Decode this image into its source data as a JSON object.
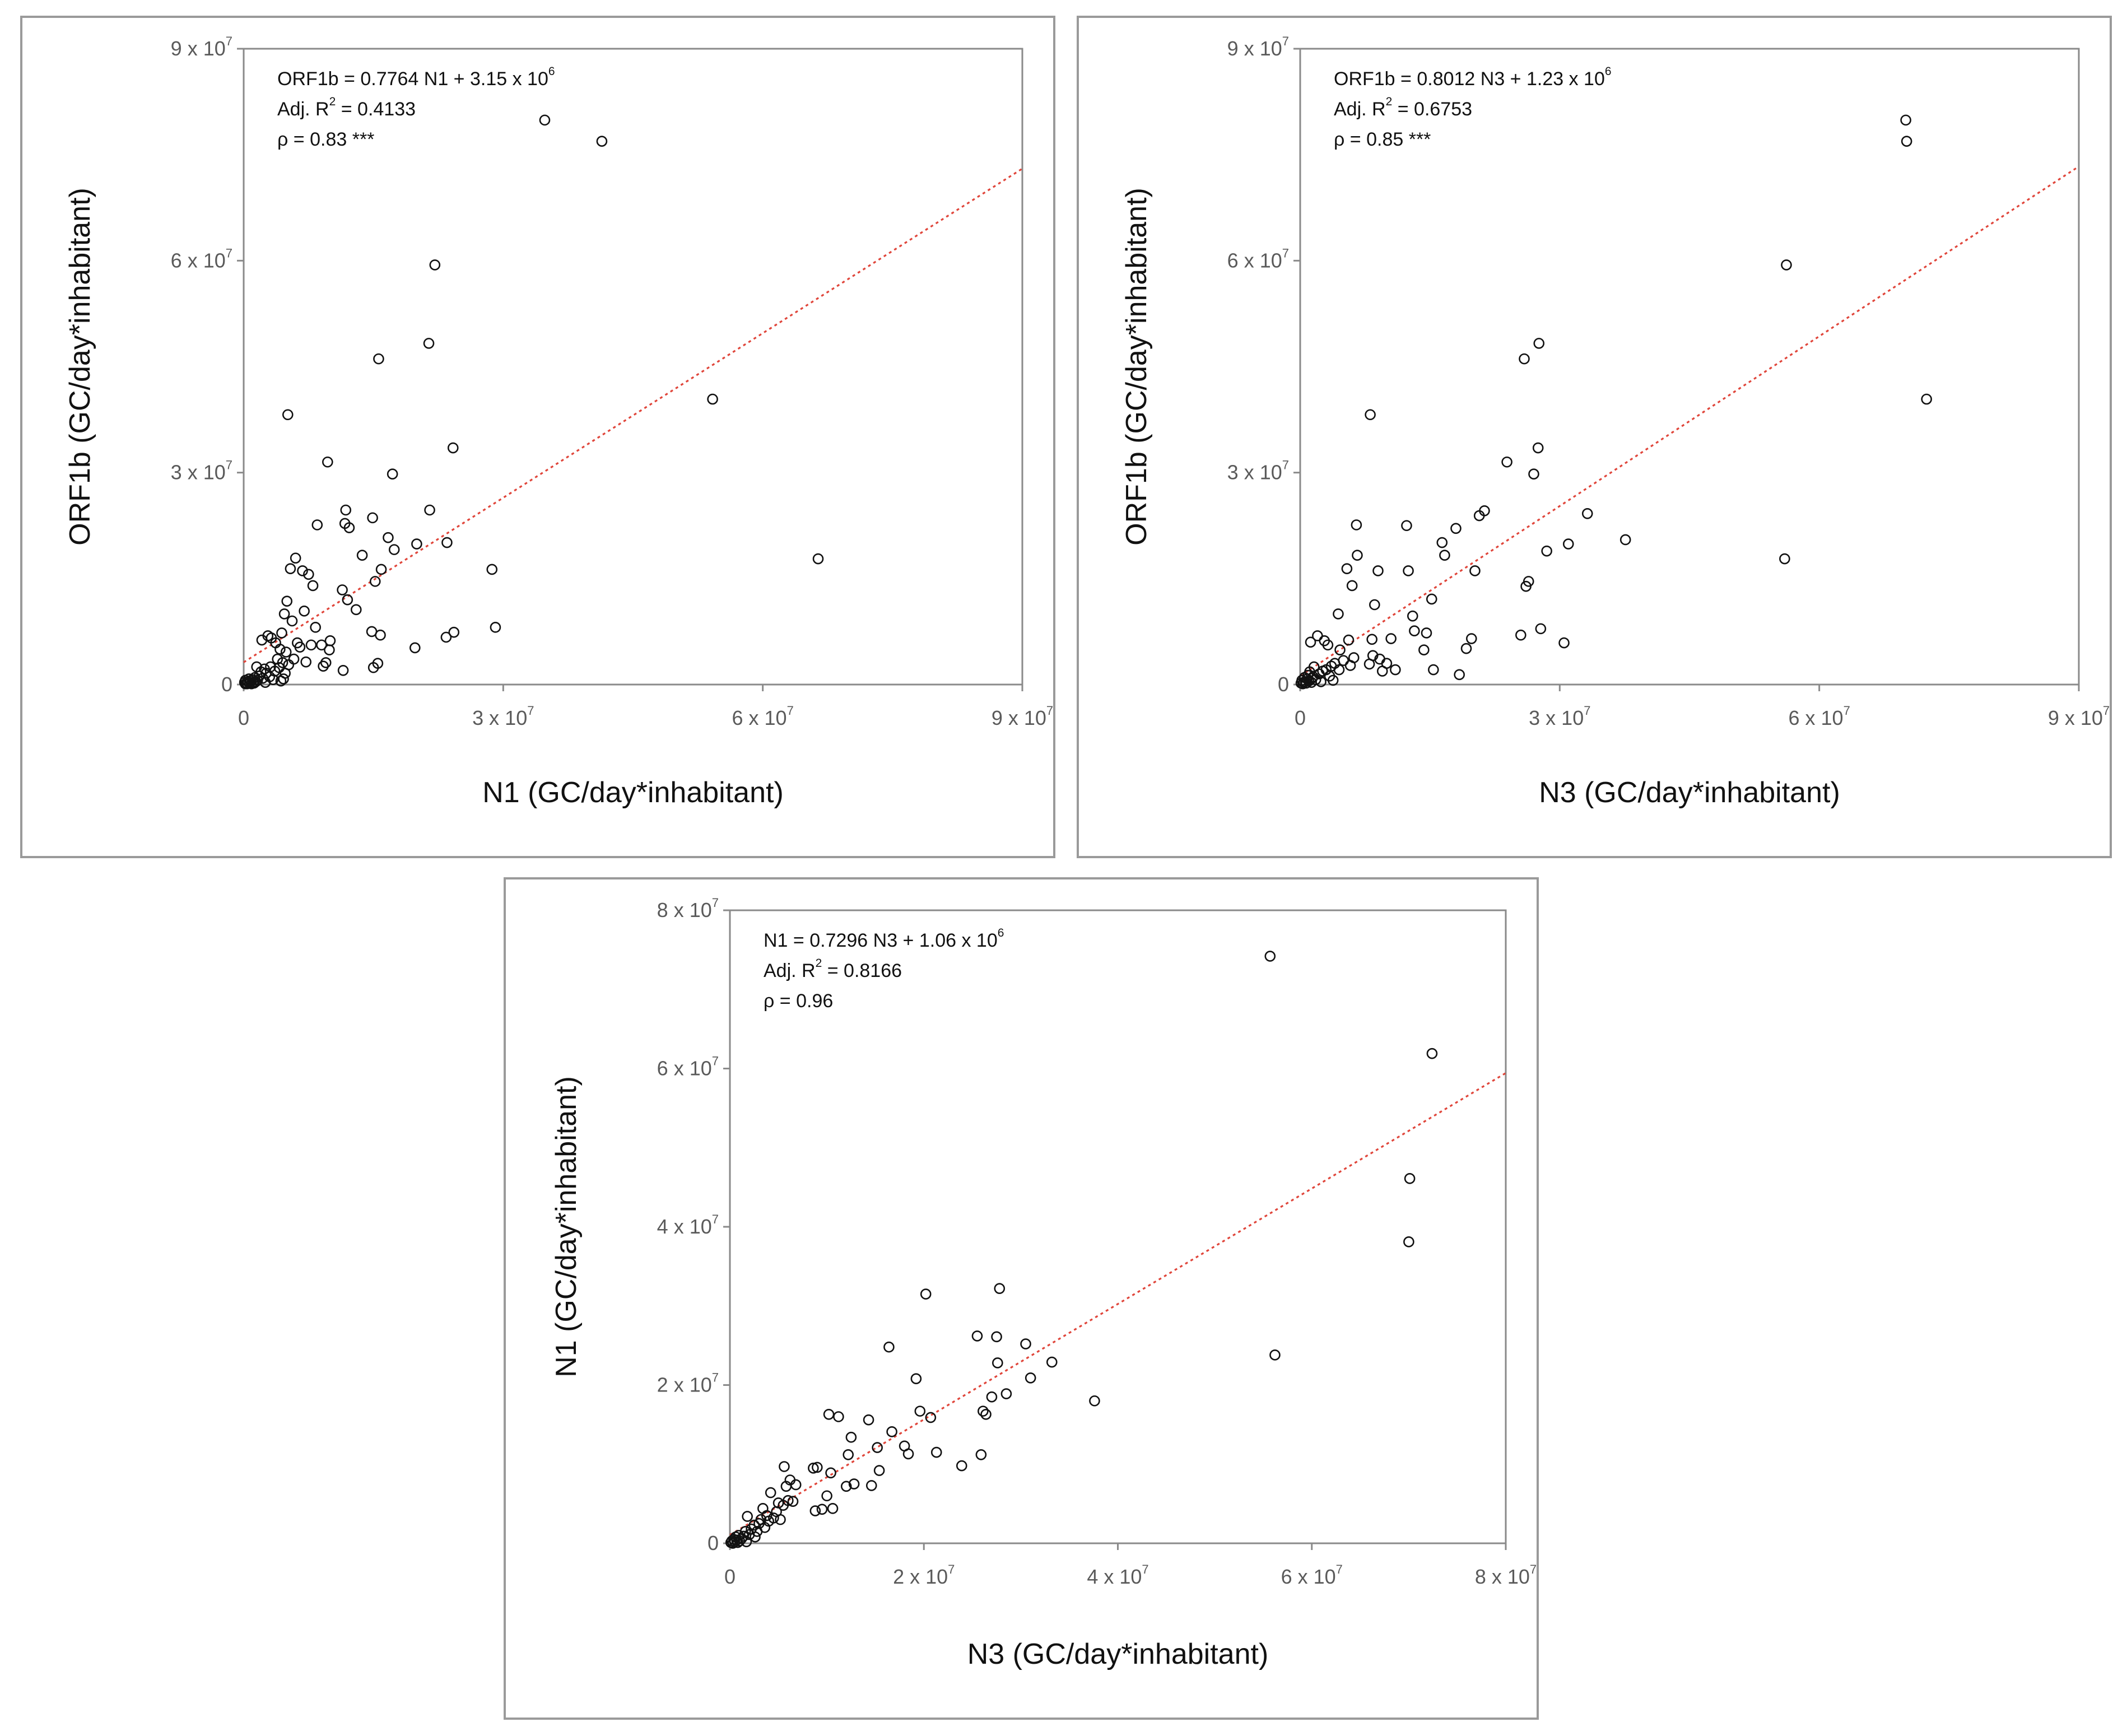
{
  "chart_data": [
    {
      "id": "chart1",
      "type": "scatter",
      "xlabel": "N1  (GC/day*inhabitant)",
      "ylabel": "ORF1b  (GC/day*inhabitant)",
      "xlim": [
        0,
        90000000
      ],
      "ylim": [
        0,
        90000000
      ],
      "x_ticks": [
        {
          "value": 0,
          "base": "0",
          "exp": ""
        },
        {
          "value": 30000000,
          "base": "3 x 10",
          "exp": "7"
        },
        {
          "value": 60000000,
          "base": "6 x 10",
          "exp": "7"
        },
        {
          "value": 90000000,
          "base": "9 x 10",
          "exp": "7"
        }
      ],
      "y_ticks": [
        {
          "value": 0,
          "base": "0",
          "exp": ""
        },
        {
          "value": 30000000,
          "base": "3 x 10",
          "exp": "7"
        },
        {
          "value": 60000000,
          "base": "6 x 10",
          "exp": "7"
        },
        {
          "value": 90000000,
          "base": "9 x 10",
          "exp": "7"
        }
      ],
      "annotations": [
        {
          "text": "ORF1b = 0.7764 N1 + 3.15 x 10",
          "sup": "6"
        },
        {
          "text": "Adj. R",
          "sup": "2",
          "tail": " = 0.4133"
        },
        {
          "text": "ρ = 0.83 ***",
          "sup": ""
        }
      ],
      "trendline": {
        "slope": 0.7764,
        "intercept": 3150000
      },
      "points": [
        [
          0.1,
          0.3
        ],
        [
          0.2,
          0.1
        ],
        [
          0.2,
          0.6
        ],
        [
          0.3,
          0.2
        ],
        [
          0.4,
          0.1
        ],
        [
          0.5,
          0.4
        ],
        [
          0.6,
          0.8
        ],
        [
          0.7,
          0.2
        ],
        [
          0.8,
          0.5
        ],
        [
          0.9,
          0.1
        ],
        [
          1.0,
          0.7
        ],
        [
          1.1,
          0.3
        ],
        [
          1.2,
          0.2
        ],
        [
          1.3,
          1.0
        ],
        [
          1.4,
          0.4
        ],
        [
          1.5,
          2.5
        ],
        [
          1.6,
          0.6
        ],
        [
          1.8,
          1.2
        ],
        [
          2.0,
          1.8
        ],
        [
          2.1,
          6.3
        ],
        [
          2.2,
          0.9
        ],
        [
          2.4,
          2.2
        ],
        [
          2.5,
          0.3
        ],
        [
          2.6,
          1.6
        ],
        [
          2.8,
          6.9
        ],
        [
          3.0,
          1.1
        ],
        [
          3.1,
          2.5
        ],
        [
          3.2,
          6.6
        ],
        [
          3.4,
          0.7
        ],
        [
          3.6,
          1.9
        ],
        [
          3.7,
          5.9
        ],
        [
          3.9,
          3.6
        ],
        [
          4.1,
          2.4
        ],
        [
          4.2,
          5.0
        ],
        [
          4.3,
          0.5
        ],
        [
          4.4,
          7.3
        ],
        [
          4.5,
          3.1
        ],
        [
          4.6,
          0.8
        ],
        [
          4.7,
          10.0
        ],
        [
          4.8,
          1.6
        ],
        [
          4.9,
          4.6
        ],
        [
          5.0,
          11.8
        ],
        [
          5.1,
          38.2
        ],
        [
          5.2,
          2.8
        ],
        [
          5.4,
          16.4
        ],
        [
          5.6,
          9.0
        ],
        [
          5.8,
          3.6
        ],
        [
          6.0,
          17.9
        ],
        [
          6.2,
          5.9
        ],
        [
          6.5,
          5.3
        ],
        [
          6.8,
          16.1
        ],
        [
          7.0,
          10.4
        ],
        [
          7.2,
          3.2
        ],
        [
          7.5,
          15.6
        ],
        [
          7.8,
          5.6
        ],
        [
          8.0,
          14.0
        ],
        [
          8.3,
          8.1
        ],
        [
          8.5,
          22.6
        ],
        [
          9.0,
          5.6
        ],
        [
          9.2,
          2.6
        ],
        [
          9.5,
          3.1
        ],
        [
          9.7,
          31.5
        ],
        [
          9.9,
          4.9
        ],
        [
          10.0,
          6.2
        ],
        [
          11.4,
          13.4
        ],
        [
          11.5,
          2.0
        ],
        [
          11.7,
          22.8
        ],
        [
          11.8,
          24.7
        ],
        [
          12.0,
          12.0
        ],
        [
          12.2,
          22.2
        ],
        [
          13.0,
          10.6
        ],
        [
          13.7,
          18.3
        ],
        [
          14.8,
          7.5
        ],
        [
          14.9,
          23.6
        ],
        [
          15.0,
          2.4
        ],
        [
          15.2,
          14.6
        ],
        [
          15.5,
          3.0
        ],
        [
          15.6,
          46.1
        ],
        [
          15.8,
          7.0
        ],
        [
          15.9,
          16.3
        ],
        [
          16.7,
          20.8
        ],
        [
          17.2,
          29.8
        ],
        [
          17.4,
          19.1
        ],
        [
          19.8,
          5.2
        ],
        [
          20.0,
          19.9
        ],
        [
          21.4,
          48.3
        ],
        [
          21.5,
          24.7
        ],
        [
          22.1,
          59.4
        ],
        [
          23.4,
          6.7
        ],
        [
          23.5,
          20.1
        ],
        [
          24.2,
          33.5
        ],
        [
          24.3,
          7.4
        ],
        [
          28.7,
          16.3
        ],
        [
          29.1,
          8.1
        ],
        [
          34.8,
          79.9
        ],
        [
          41.4,
          76.9
        ],
        [
          54.2,
          40.4
        ],
        [
          66.4,
          17.8
        ]
      ]
    },
    {
      "id": "chart2",
      "type": "scatter",
      "xlabel": "N3  (GC/day*inhabitant)",
      "ylabel": "ORF1b  (GC/day*inhabitant)",
      "xlim": [
        0,
        90000000
      ],
      "ylim": [
        0,
        90000000
      ],
      "x_ticks": [
        {
          "value": 0,
          "base": "0",
          "exp": ""
        },
        {
          "value": 30000000,
          "base": "3 x 10",
          "exp": "7"
        },
        {
          "value": 60000000,
          "base": "6 x 10",
          "exp": "7"
        },
        {
          "value": 90000000,
          "base": "9 x 10",
          "exp": "7"
        }
      ],
      "y_ticks": [
        {
          "value": 0,
          "base": "0",
          "exp": ""
        },
        {
          "value": 30000000,
          "base": "3 x 10",
          "exp": "7"
        },
        {
          "value": 60000000,
          "base": "6 x 10",
          "exp": "7"
        },
        {
          "value": 90000000,
          "base": "9 x 10",
          "exp": "7"
        }
      ],
      "annotations": [
        {
          "text": "ORF1b = 0.8012 N3 + 1.23 x 10",
          "sup": "6"
        },
        {
          "text": "Adj. R",
          "sup": "2",
          "tail": " = 0.6753"
        },
        {
          "text": "ρ = 0.85 ***",
          "sup": ""
        }
      ],
      "trendline": {
        "slope": 0.8012,
        "intercept": 1230000
      },
      "points": [
        [
          0.1,
          0.2
        ],
        [
          0.2,
          0.6
        ],
        [
          0.3,
          0.1
        ],
        [
          0.4,
          0.3
        ],
        [
          0.5,
          1.0
        ],
        [
          0.6,
          0.4
        ],
        [
          0.7,
          0.2
        ],
        [
          0.8,
          0.8
        ],
        [
          0.9,
          1.3
        ],
        [
          1.0,
          0.5
        ],
        [
          1.1,
          1.8
        ],
        [
          1.2,
          6.0
        ],
        [
          1.3,
          0.3
        ],
        [
          1.4,
          0.9
        ],
        [
          1.5,
          1.1
        ],
        [
          1.6,
          2.5
        ],
        [
          1.8,
          0.7
        ],
        [
          2.0,
          6.9
        ],
        [
          2.2,
          1.5
        ],
        [
          2.4,
          0.4
        ],
        [
          2.6,
          1.9
        ],
        [
          2.8,
          6.2
        ],
        [
          3.0,
          2.1
        ],
        [
          3.2,
          5.6
        ],
        [
          3.4,
          1.2
        ],
        [
          3.6,
          2.6
        ],
        [
          3.8,
          0.6
        ],
        [
          4.0,
          3.0
        ],
        [
          4.4,
          10.0
        ],
        [
          4.5,
          2.1
        ],
        [
          4.6,
          4.9
        ],
        [
          5.0,
          3.4
        ],
        [
          5.4,
          16.4
        ],
        [
          5.6,
          6.3
        ],
        [
          5.8,
          2.7
        ],
        [
          6.0,
          14.0
        ],
        [
          6.2,
          3.8
        ],
        [
          6.5,
          22.6
        ],
        [
          6.6,
          18.3
        ],
        [
          8.0,
          2.9
        ],
        [
          8.1,
          38.2
        ],
        [
          8.3,
          6.4
        ],
        [
          8.4,
          4.1
        ],
        [
          8.6,
          11.3
        ],
        [
          9.0,
          16.1
        ],
        [
          9.2,
          3.6
        ],
        [
          9.5,
          1.9
        ],
        [
          10.0,
          3.0
        ],
        [
          10.5,
          6.5
        ],
        [
          11.0,
          2.1
        ],
        [
          12.3,
          22.5
        ],
        [
          12.5,
          16.1
        ],
        [
          13.0,
          9.7
        ],
        [
          13.2,
          7.6
        ],
        [
          14.3,
          4.9
        ],
        [
          14.6,
          7.3
        ],
        [
          15.2,
          12.1
        ],
        [
          15.4,
          2.1
        ],
        [
          16.4,
          20.1
        ],
        [
          16.7,
          18.3
        ],
        [
          18.0,
          22.1
        ],
        [
          18.4,
          1.4
        ],
        [
          19.2,
          5.1
        ],
        [
          19.8,
          6.5
        ],
        [
          20.2,
          16.1
        ],
        [
          20.7,
          23.9
        ],
        [
          21.3,
          24.6
        ],
        [
          23.9,
          31.5
        ],
        [
          25.5,
          7.0
        ],
        [
          25.9,
          46.1
        ],
        [
          26.1,
          13.9
        ],
        [
          26.4,
          14.6
        ],
        [
          27.0,
          29.8
        ],
        [
          27.5,
          33.5
        ],
        [
          27.6,
          48.3
        ],
        [
          27.8,
          7.9
        ],
        [
          28.5,
          18.9
        ],
        [
          30.5,
          5.9
        ],
        [
          31.0,
          19.9
        ],
        [
          33.2,
          24.2
        ],
        [
          37.6,
          20.5
        ],
        [
          56.0,
          17.8
        ],
        [
          56.2,
          59.4
        ],
        [
          70.0,
          79.9
        ],
        [
          70.1,
          76.9
        ],
        [
          72.4,
          40.4
        ]
      ]
    },
    {
      "id": "chart3",
      "type": "scatter",
      "xlabel": "N3  (GC/day*inhabitant)",
      "ylabel": "N1  (GC/day*inhabitant)",
      "xlim": [
        0,
        80000000
      ],
      "ylim": [
        0,
        80000000
      ],
      "x_ticks": [
        {
          "value": 0,
          "base": "0",
          "exp": ""
        },
        {
          "value": 20000000,
          "base": "2 x 10",
          "exp": "7"
        },
        {
          "value": 40000000,
          "base": "4 x 10",
          "exp": "7"
        },
        {
          "value": 60000000,
          "base": "6 x 10",
          "exp": "7"
        },
        {
          "value": 80000000,
          "base": "8 x 10",
          "exp": "7"
        }
      ],
      "y_ticks": [
        {
          "value": 0,
          "base": "0",
          "exp": ""
        },
        {
          "value": 20000000,
          "base": "2 x 10",
          "exp": "7"
        },
        {
          "value": 40000000,
          "base": "4 x 10",
          "exp": "7"
        },
        {
          "value": 60000000,
          "base": "6 x 10",
          "exp": "7"
        },
        {
          "value": 80000000,
          "base": "8 x 10",
          "exp": "7"
        }
      ],
      "annotations": [
        {
          "text": "N1 = 0.7296 N3 + 1.06 x 10",
          "sup": "6"
        },
        {
          "text": "Adj. R",
          "sup": "2",
          "tail": " = 0.8166"
        },
        {
          "text": "ρ = 0.96",
          "sup": ""
        }
      ],
      "trendline": {
        "slope": 0.7296,
        "intercept": 1060000
      },
      "points": [
        [
          0.1,
          0.1
        ],
        [
          0.2,
          0.3
        ],
        [
          0.3,
          0.0
        ],
        [
          0.4,
          0.5
        ],
        [
          0.5,
          0.2
        ],
        [
          0.6,
          0.8
        ],
        [
          0.7,
          0.4
        ],
        [
          0.8,
          0.1
        ],
        [
          0.9,
          1.0
        ],
        [
          1.0,
          0.3
        ],
        [
          1.2,
          0.6
        ],
        [
          1.4,
          0.9
        ],
        [
          1.6,
          1.5
        ],
        [
          1.7,
          0.2
        ],
        [
          1.8,
          3.4
        ],
        [
          2.0,
          1.1
        ],
        [
          2.2,
          1.8
        ],
        [
          2.5,
          2.3
        ],
        [
          2.6,
          0.8
        ],
        [
          2.8,
          1.5
        ],
        [
          3.0,
          2.5
        ],
        [
          3.2,
          3.0
        ],
        [
          3.4,
          4.4
        ],
        [
          3.6,
          2.0
        ],
        [
          3.8,
          3.5
        ],
        [
          4.0,
          2.8
        ],
        [
          4.2,
          6.4
        ],
        [
          4.5,
          3.2
        ],
        [
          4.8,
          4.0
        ],
        [
          5.0,
          5.1
        ],
        [
          5.2,
          3.0
        ],
        [
          5.5,
          4.8
        ],
        [
          5.6,
          9.7
        ],
        [
          5.8,
          7.2
        ],
        [
          6.0,
          5.4
        ],
        [
          6.2,
          8.0
        ],
        [
          6.5,
          5.3
        ],
        [
          6.8,
          7.4
        ],
        [
          8.6,
          9.5
        ],
        [
          8.8,
          4.1
        ],
        [
          9.0,
          9.6
        ],
        [
          9.5,
          4.3
        ],
        [
          10.0,
          6.0
        ],
        [
          10.2,
          16.3
        ],
        [
          10.4,
          8.9
        ],
        [
          10.6,
          4.4
        ],
        [
          11.2,
          16.0
        ],
        [
          12.0,
          7.2
        ],
        [
          12.2,
          11.2
        ],
        [
          12.5,
          13.4
        ],
        [
          12.8,
          7.5
        ],
        [
          14.3,
          15.6
        ],
        [
          14.6,
          7.3
        ],
        [
          15.2,
          12.1
        ],
        [
          15.4,
          9.2
        ],
        [
          16.4,
          24.8
        ],
        [
          16.7,
          14.1
        ],
        [
          18.0,
          12.3
        ],
        [
          18.4,
          11.3
        ],
        [
          19.2,
          20.8
        ],
        [
          19.6,
          16.7
        ],
        [
          20.2,
          31.5
        ],
        [
          20.7,
          15.9
        ],
        [
          21.3,
          11.5
        ],
        [
          23.9,
          9.8
        ],
        [
          25.5,
          26.2
        ],
        [
          25.9,
          11.2
        ],
        [
          26.1,
          16.7
        ],
        [
          26.4,
          16.3
        ],
        [
          27.0,
          18.5
        ],
        [
          27.5,
          26.1
        ],
        [
          27.6,
          22.8
        ],
        [
          27.8,
          32.2
        ],
        [
          28.5,
          18.9
        ],
        [
          30.5,
          25.2
        ],
        [
          31.0,
          20.9
        ],
        [
          33.2,
          22.9
        ],
        [
          37.6,
          18.0
        ],
        [
          55.7,
          74.2
        ],
        [
          56.2,
          23.8
        ],
        [
          70.1,
          46.1
        ],
        [
          70.0,
          38.1
        ],
        [
          72.4,
          61.9
        ]
      ]
    }
  ]
}
